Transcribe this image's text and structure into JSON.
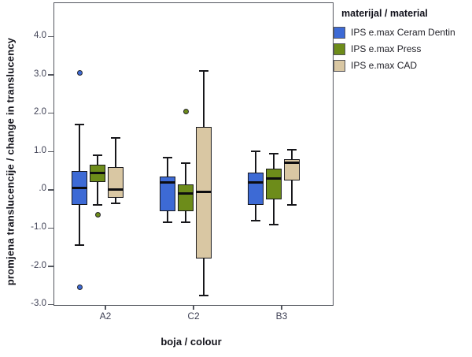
{
  "chart_data": {
    "type": "boxplot",
    "title": "",
    "xlabel": "boja / colour",
    "ylabel": "promjena translucencije / change in translucency",
    "legend": {
      "title": "materijal / material",
      "position": "top-right"
    },
    "categories": [
      "A2",
      "C2",
      "B3"
    ],
    "ylim": [
      -3.0,
      4.9
    ],
    "grid": false,
    "ytick_values": [
      4,
      3,
      2,
      1,
      0,
      -1,
      -2,
      -3
    ],
    "ytick_labels": [
      "4.0",
      "3.0",
      "2.0",
      "1.0",
      ".0",
      "-1.0",
      "-2.0",
      "-3.0"
    ],
    "series": [
      {
        "name": "IPS e.max Ceram Dentin",
        "color": "#3D6AD5",
        "boxes": [
          {
            "category": "A2",
            "whisker_low": -1.45,
            "q1": -0.4,
            "median": 0.05,
            "q3": 0.5,
            "whisker_high": 1.7,
            "outliers": [
              3.05,
              -2.55
            ]
          },
          {
            "category": "C2",
            "whisker_low": -0.85,
            "q1": -0.55,
            "median": 0.2,
            "q3": 0.35,
            "whisker_high": 0.85,
            "outliers": []
          },
          {
            "category": "B3",
            "whisker_low": -0.8,
            "q1": -0.4,
            "median": 0.2,
            "q3": 0.45,
            "whisker_high": 1.0,
            "outliers": []
          }
        ]
      },
      {
        "name": "IPS e.max Press",
        "color": "#6D8C1A",
        "boxes": [
          {
            "category": "A2",
            "whisker_low": -0.4,
            "q1": 0.2,
            "median": 0.45,
            "q3": 0.65,
            "whisker_high": 0.9,
            "outliers": [
              -0.65
            ]
          },
          {
            "category": "C2",
            "whisker_low": -0.85,
            "q1": -0.55,
            "median": -0.1,
            "q3": 0.15,
            "whisker_high": 0.7,
            "outliers": [
              2.05
            ]
          },
          {
            "category": "B3",
            "whisker_low": -0.9,
            "q1": -0.25,
            "median": 0.3,
            "q3": 0.55,
            "whisker_high": 0.95,
            "outliers": []
          }
        ]
      },
      {
        "name": "IPS e.max CAD",
        "color": "#D9C7A3",
        "boxes": [
          {
            "category": "A2",
            "whisker_low": -0.35,
            "q1": -0.2,
            "median": 0.0,
            "q3": 0.6,
            "whisker_high": 1.35,
            "outliers": []
          },
          {
            "category": "C2",
            "whisker_low": -2.75,
            "q1": -1.8,
            "median": -0.05,
            "q3": 1.65,
            "whisker_high": 3.1,
            "outliers": []
          },
          {
            "category": "B3",
            "whisker_low": -0.4,
            "q1": 0.25,
            "median": 0.7,
            "q3": 0.8,
            "whisker_high": 1.05,
            "outliers": []
          }
        ]
      }
    ]
  }
}
